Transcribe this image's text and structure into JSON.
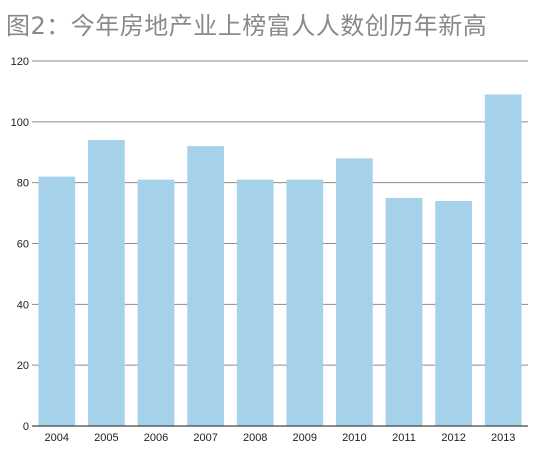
{
  "title": "图2：今年房地产业上榜富人人数创历年新高",
  "chart_data": {
    "type": "bar",
    "title": "图2：今年房地产业上榜富人人数创历年新高",
    "categories": [
      "2004",
      "2005",
      "2006",
      "2007",
      "2008",
      "2009",
      "2010",
      "2011",
      "2012",
      "2013"
    ],
    "values": [
      82,
      94,
      81,
      92,
      81,
      81,
      88,
      75,
      74,
      109
    ],
    "xlabel": "",
    "ylabel": "",
    "ylim": [
      0,
      120
    ],
    "yticks": [
      "0",
      "20",
      "40",
      "60",
      "80",
      "100",
      "120"
    ],
    "grid": true,
    "colors": {
      "bar": "#a6d1ea",
      "grid": "#8c8c8c",
      "axis": "#444444",
      "title": "#8a8a8a"
    }
  }
}
